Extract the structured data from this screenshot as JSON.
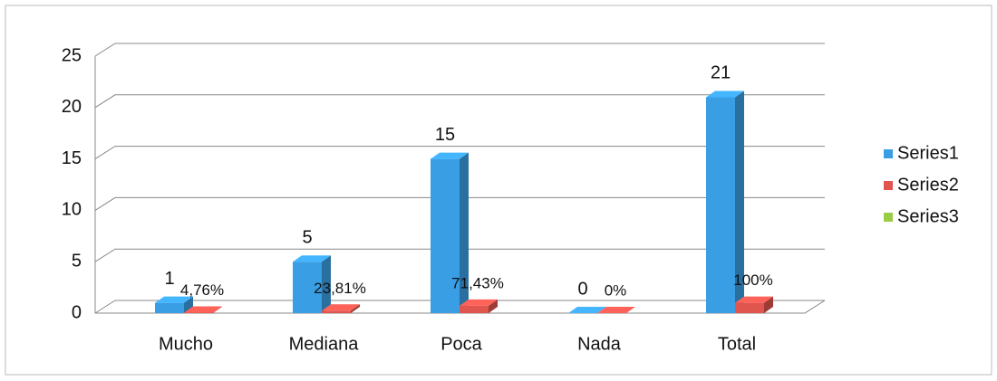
{
  "chart_data": {
    "type": "bar3d",
    "categories": [
      "Mucho",
      "Mediana",
      "Poca",
      "Nada",
      "Total"
    ],
    "series": [
      {
        "name": "Series1",
        "color": "#3a9ee4",
        "values": [
          1,
          5,
          15,
          0,
          21
        ]
      },
      {
        "name": "Series2",
        "color": "#e0554d",
        "values": [
          0.0476,
          0.2381,
          0.7143,
          0,
          1
        ],
        "value_labels": [
          "4,76%",
          "23,81%",
          "71,43%",
          "0%",
          "100%"
        ]
      },
      {
        "name": "Series3",
        "color": "#9acd45",
        "values": [
          null,
          null,
          null,
          null,
          null
        ]
      }
    ],
    "ylim": [
      0,
      25
    ],
    "yticks": [
      0,
      5,
      10,
      15,
      20,
      25
    ],
    "grid": true,
    "legend": "right"
  }
}
